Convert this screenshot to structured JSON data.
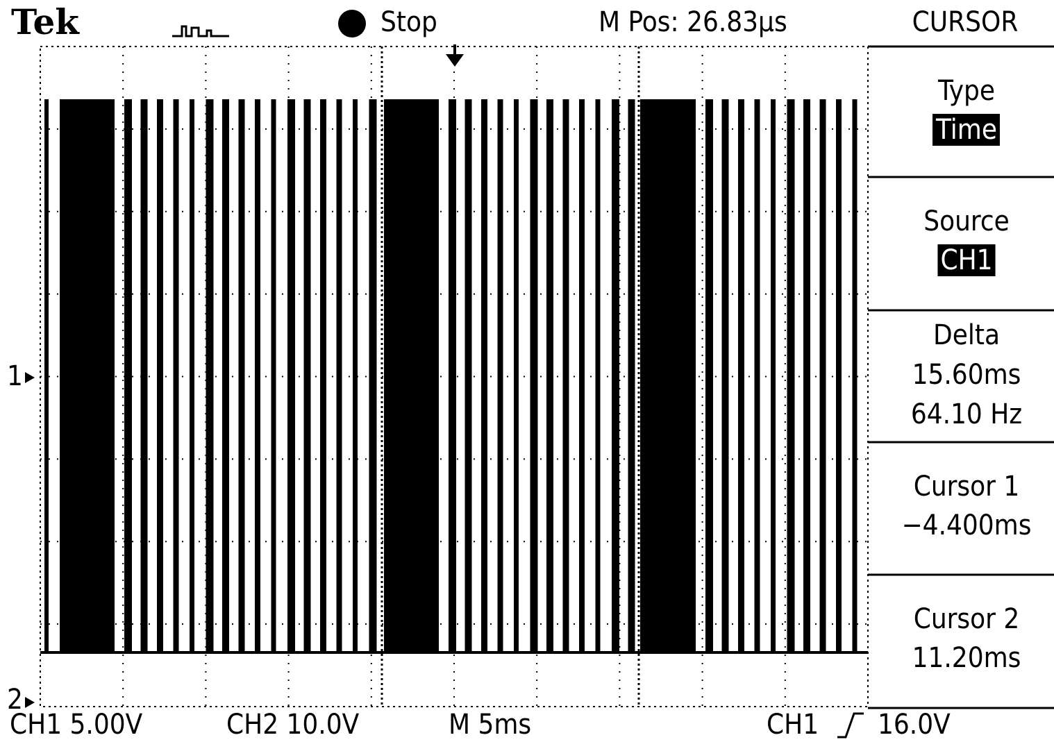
{
  "header": {
    "brand": "Tek",
    "state": "Stop",
    "position": "M Pos: 26.83μs"
  },
  "menu": {
    "title": "CURSOR",
    "items": [
      {
        "label": "Type",
        "value": "Time"
      },
      {
        "label": "Source",
        "value": "CH1"
      },
      {
        "label": "Delta",
        "values": [
          "15.60ms",
          "64.10 Hz"
        ]
      },
      {
        "label": "Cursor 1",
        "value": "−4.400ms"
      },
      {
        "label": "Cursor 2",
        "value": "11.20ms"
      }
    ]
  },
  "markers": [
    "1",
    "2"
  ],
  "footer": {
    "ch1": "CH1 5.00V",
    "ch2": "CH2 10.0V",
    "timebase": "M 5ms",
    "trigger_source": "CH1",
    "trigger_level": "16.0V"
  }
}
